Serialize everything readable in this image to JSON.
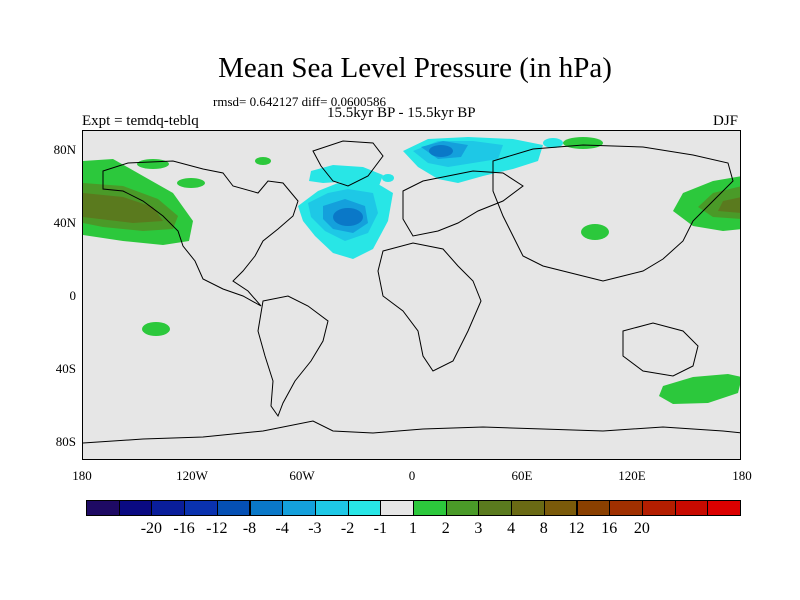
{
  "title": "Mean Sea Level Pressure (in hPa)",
  "stats": "rmsd= 0.642127 diff= 0.0600586",
  "subtitle": "15.5kyr BP - 15.5kyr BP",
  "left_label": "Expt = temdq-teblq",
  "right_label": "DJF",
  "y_axis_labels": [
    "80N",
    "40N",
    "0",
    "40S",
    "80S"
  ],
  "x_axis_labels": [
    "180",
    "120W",
    "60W",
    "0",
    "60E",
    "120E",
    "180"
  ],
  "colorbar": {
    "colors": [
      "#1e0a64",
      "#0a0a82",
      "#0a1e9b",
      "#0a32af",
      "#0550b4",
      "#0a78c8",
      "#14a0dc",
      "#1ec8e6",
      "#28e6e6",
      "#e6e6e6",
      "#2cc83c",
      "#4a9a28",
      "#5a7a1e",
      "#6a6a14",
      "#7a5a0a",
      "#8a4000",
      "#a03000",
      "#b41e00",
      "#c80a00",
      "#dc0000"
    ],
    "labels": [
      "-20",
      "-16",
      "-12",
      "-8",
      "-4",
      "-3",
      "-2",
      "-1",
      "1",
      "2",
      "3",
      "4",
      "8",
      "12",
      "16",
      "20"
    ]
  },
  "map_data": {
    "projection": "cylindrical equidistant",
    "lon_range": [
      -180,
      180
    ],
    "lat_range": [
      -90,
      90
    ],
    "field": "Mean sea level pressure difference (hPa)",
    "season": "DJF",
    "features": [
      {
        "name": "North Atlantic low",
        "level": "-3 to -4"
      },
      {
        "name": "Scandinavian / Barents low",
        "level": "-2 to -4"
      },
      {
        "name": "North Pacific high",
        "level": "2 to 3"
      },
      {
        "name": "Southern Ocean high",
        "level": "1 to 2"
      }
    ]
  }
}
